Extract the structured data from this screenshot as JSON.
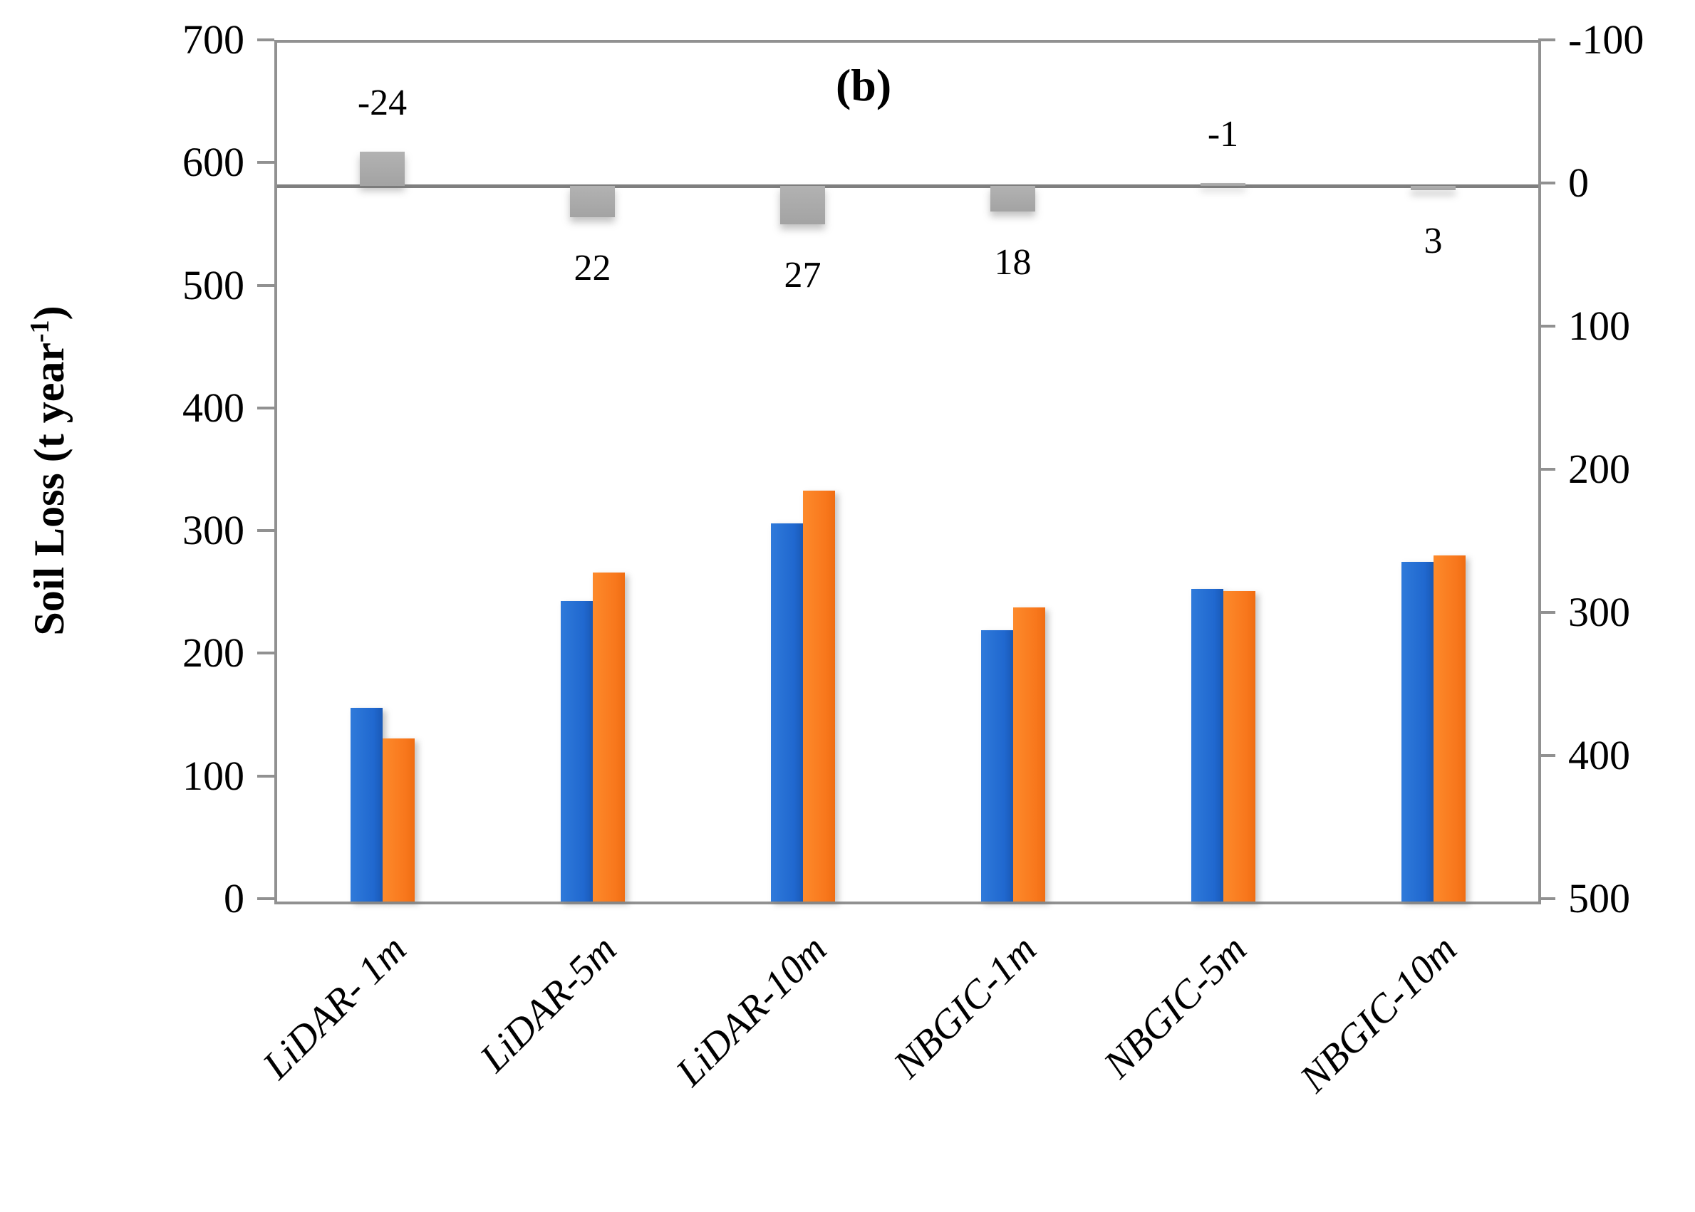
{
  "figure": {
    "panel_label": "(b)",
    "y_axis_title": {
      "prefix": "Soil Loss (t year",
      "superscript": "-1",
      "suffix": ")"
    }
  },
  "chart_data": {
    "type": "bar",
    "title": "(b)",
    "categories": [
      "LiDAR- 1m",
      "LiDAR-5m",
      "LiDAR-10m",
      "NBGIC-1m",
      "NBGIC-5m",
      "NBGIC-10m"
    ],
    "series": [
      {
        "name": "soil-loss-blue",
        "axis": "left",
        "color": "#2068cf",
        "values": [
          158,
          245,
          308,
          221,
          255,
          277
        ]
      },
      {
        "name": "soil-loss-orange",
        "axis": "left",
        "color": "#f8771c",
        "values": [
          133,
          268,
          335,
          240,
          253,
          282
        ]
      },
      {
        "name": "difference-gray",
        "axis": "right",
        "color": "#a8a8a8",
        "values": [
          -24,
          22,
          27,
          18,
          -1,
          3
        ],
        "data_labels": [
          "-24",
          "22",
          "27",
          "18",
          "-1",
          "3"
        ]
      }
    ],
    "left_axis": {
      "label": "Soil Loss (t year-1)",
      "range": [
        0,
        700
      ],
      "tick_step": 100,
      "ticks": [
        0,
        100,
        200,
        300,
        400,
        500,
        600,
        700
      ]
    },
    "right_axis": {
      "label": "",
      "range": [
        -100,
        500
      ],
      "tick_step": 100,
      "inverted": true,
      "ticks": [
        -100,
        0,
        100,
        200,
        300,
        400,
        500
      ]
    },
    "legend": "none",
    "grid": false
  }
}
